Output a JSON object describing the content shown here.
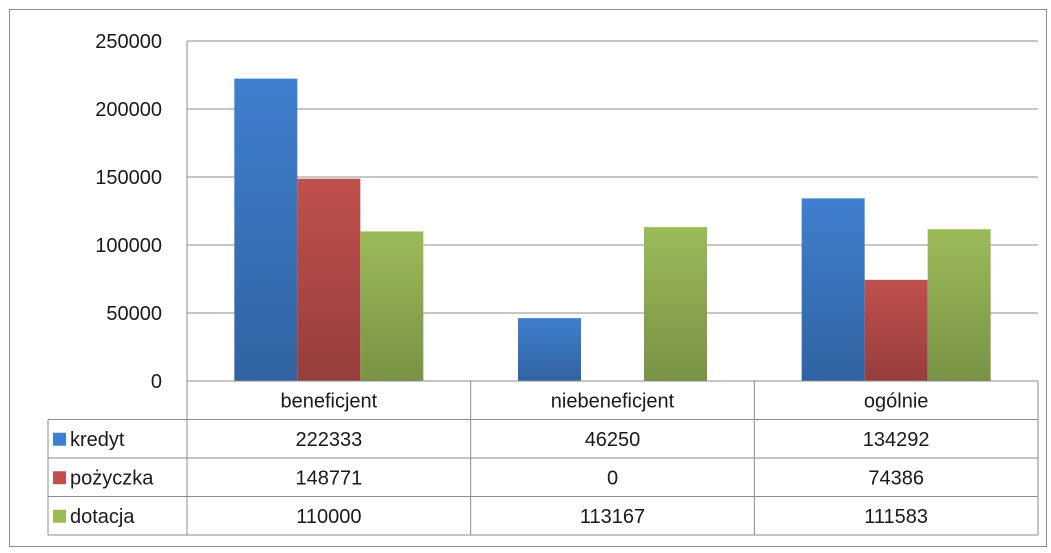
{
  "chart_data": {
    "type": "bar",
    "title": "",
    "xlabel": "",
    "ylabel": "",
    "categories": [
      "beneficjent",
      "niebeneficjent",
      "ogólnie"
    ],
    "series": [
      {
        "name": "kredyt",
        "values": [
          222333,
          46250,
          134292
        ],
        "color": "#3f7fcf"
      },
      {
        "name": "pożyczka",
        "values": [
          148771,
          0,
          74386
        ],
        "color": "#c0504d"
      },
      {
        "name": "dotacja",
        "values": [
          110000,
          113167,
          111583
        ],
        "color": "#9bbb59"
      }
    ],
    "ylim": [
      0,
      250000
    ],
    "yticks": [
      "0",
      "50000",
      "100000",
      "150000",
      "200000",
      "250000"
    ],
    "table_values": [
      [
        "222333",
        "46250",
        "134292"
      ],
      [
        "148771",
        "0",
        "74386"
      ],
      [
        "110000",
        "113167",
        "111583"
      ]
    ],
    "grid": true,
    "legend": "data-table"
  }
}
